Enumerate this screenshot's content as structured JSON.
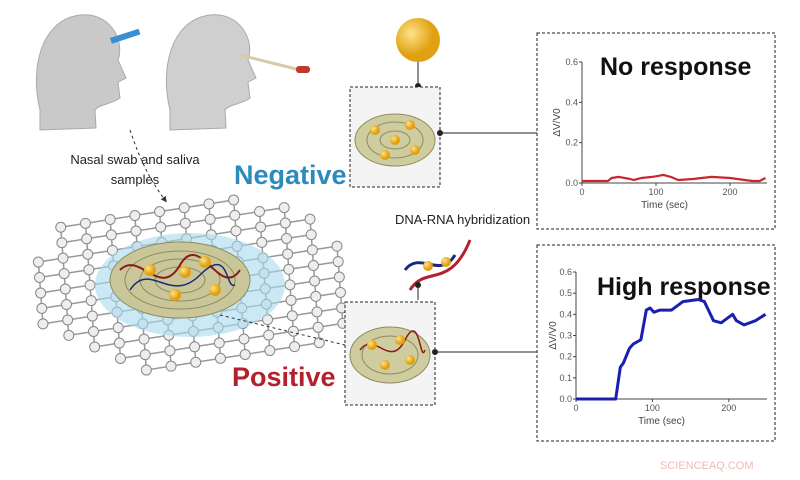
{
  "labels": {
    "samples": [
      "Nasal swab and saliva",
      "samples"
    ],
    "negative": "Negative",
    "positive": "Positive",
    "hybridization": "DNA-RNA hybridization",
    "watermark": "SCIENCEAQ.COM"
  },
  "colors": {
    "negative": "#2b8bbd",
    "positive": "#b3212b",
    "gold": "#f2b81c",
    "no_response_line": "#c9252d",
    "high_response_line": "#1a1fb0"
  },
  "chart_data": [
    {
      "type": "line",
      "title": "No response",
      "xlabel": "Time (sec)",
      "ylabel": "ΔV/V0",
      "xlim": [
        0,
        250
      ],
      "ylim": [
        0,
        0.6
      ],
      "xticks": [
        "0",
        "100",
        "200"
      ],
      "xtick_values": [
        0,
        100,
        200
      ],
      "yticks": [
        "0.0",
        "0.2",
        "0.4",
        "0.6"
      ],
      "ytick_values": [
        0,
        0.2,
        0.4,
        0.6
      ],
      "series": [
        {
          "name": "negative",
          "x": [
            0,
            35,
            40,
            50,
            65,
            70,
            80,
            95,
            110,
            120,
            130,
            150,
            175,
            200,
            230,
            240,
            248
          ],
          "y": [
            0.01,
            0.01,
            0.025,
            0.03,
            0.02,
            0.015,
            0.025,
            0.03,
            0.04,
            0.03,
            0.015,
            0.02,
            0.03,
            0.025,
            0.01,
            0.01,
            0.025
          ]
        }
      ]
    },
    {
      "type": "line",
      "title": "High response",
      "xlabel": "Time (sec)",
      "ylabel": "ΔV/V0",
      "xlim": [
        0,
        250
      ],
      "ylim": [
        0,
        0.6
      ],
      "xticks": [
        "0",
        "100",
        "200"
      ],
      "xtick_values": [
        0,
        100,
        200
      ],
      "yticks": [
        "0.0",
        "0.1",
        "0.2",
        "0.3",
        "0.4",
        "0.5",
        "0.6"
      ],
      "ytick_values": [
        0,
        0.1,
        0.2,
        0.3,
        0.4,
        0.5,
        0.6
      ],
      "series": [
        {
          "name": "positive",
          "x": [
            0,
            40,
            52,
            58,
            62,
            70,
            75,
            85,
            92,
            97,
            102,
            110,
            125,
            140,
            160,
            168,
            180,
            190,
            205,
            210,
            220,
            235,
            248
          ],
          "y": [
            0,
            0,
            0,
            0.15,
            0.17,
            0.24,
            0.26,
            0.28,
            0.42,
            0.43,
            0.41,
            0.42,
            0.42,
            0.46,
            0.47,
            0.46,
            0.37,
            0.36,
            0.4,
            0.37,
            0.35,
            0.37,
            0.4
          ]
        }
      ]
    }
  ]
}
